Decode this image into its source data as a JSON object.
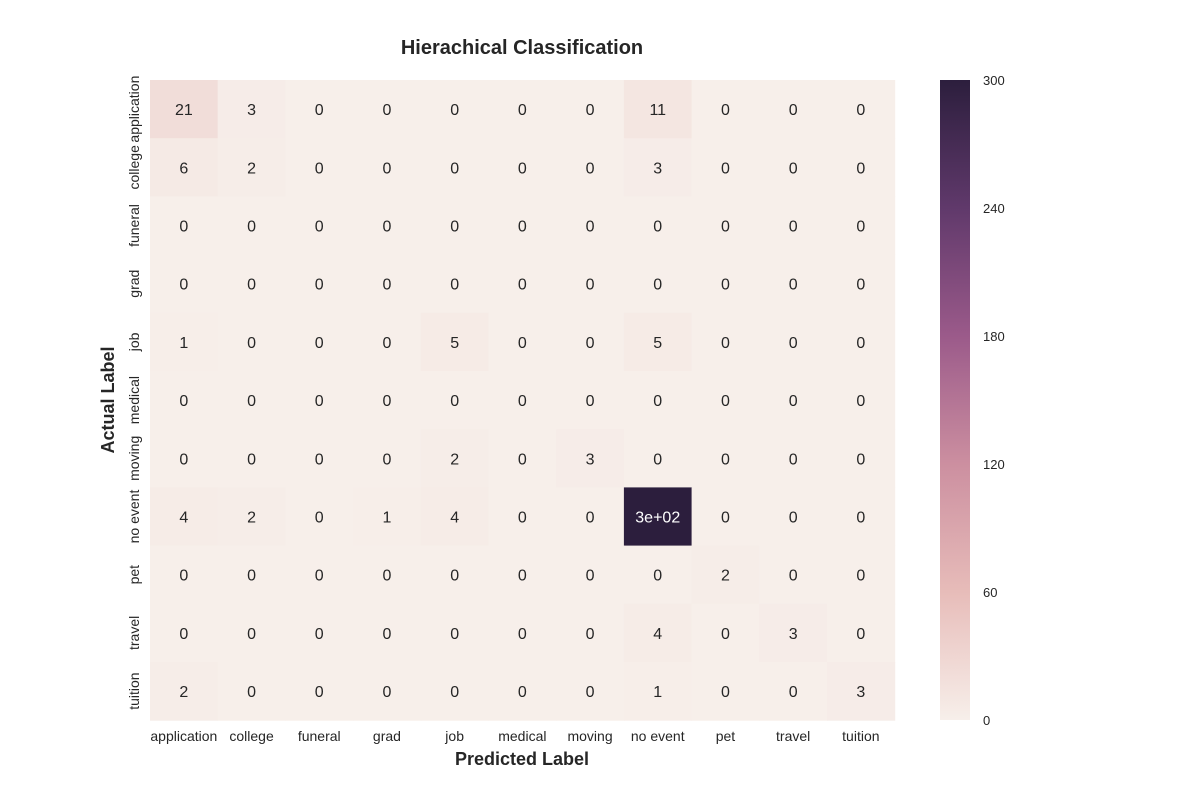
{
  "chart_data": {
    "type": "heatmap",
    "title": "Hierachical Classification",
    "xlabel": "Predicted Label",
    "ylabel": "Actual Label",
    "x_categories": [
      "application",
      "college",
      "funeral",
      "grad",
      "job",
      "medical",
      "moving",
      "no event",
      "pet",
      "travel",
      "tuition"
    ],
    "y_categories": [
      "application",
      "college",
      "funeral",
      "grad",
      "job",
      "medical",
      "moving",
      "no event",
      "pet",
      "travel",
      "tuition"
    ],
    "values": [
      [
        21,
        3,
        0,
        0,
        0,
        0,
        0,
        11,
        0,
        0,
        0
      ],
      [
        6,
        2,
        0,
        0,
        0,
        0,
        0,
        3,
        0,
        0,
        0
      ],
      [
        0,
        0,
        0,
        0,
        0,
        0,
        0,
        0,
        0,
        0,
        0
      ],
      [
        0,
        0,
        0,
        0,
        0,
        0,
        0,
        0,
        0,
        0,
        0
      ],
      [
        1,
        0,
        0,
        0,
        5,
        0,
        0,
        5,
        0,
        0,
        0
      ],
      [
        0,
        0,
        0,
        0,
        0,
        0,
        0,
        0,
        0,
        0,
        0
      ],
      [
        0,
        0,
        0,
        0,
        2,
        0,
        3,
        0,
        0,
        0,
        0
      ],
      [
        4,
        2,
        0,
        1,
        4,
        0,
        0,
        300,
        0,
        0,
        0
      ],
      [
        0,
        0,
        0,
        0,
        0,
        0,
        0,
        0,
        2,
        0,
        0
      ],
      [
        0,
        0,
        0,
        0,
        0,
        0,
        0,
        4,
        0,
        3,
        0
      ],
      [
        2,
        0,
        0,
        0,
        0,
        0,
        0,
        1,
        0,
        0,
        3
      ]
    ],
    "cell_labels": [
      [
        "21",
        "3",
        "0",
        "0",
        "0",
        "0",
        "0",
        "11",
        "0",
        "0",
        "0"
      ],
      [
        "6",
        "2",
        "0",
        "0",
        "0",
        "0",
        "0",
        "3",
        "0",
        "0",
        "0"
      ],
      [
        "0",
        "0",
        "0",
        "0",
        "0",
        "0",
        "0",
        "0",
        "0",
        "0",
        "0"
      ],
      [
        "0",
        "0",
        "0",
        "0",
        "0",
        "0",
        "0",
        "0",
        "0",
        "0",
        "0"
      ],
      [
        "1",
        "0",
        "0",
        "0",
        "5",
        "0",
        "0",
        "5",
        "0",
        "0",
        "0"
      ],
      [
        "0",
        "0",
        "0",
        "0",
        "0",
        "0",
        "0",
        "0",
        "0",
        "0",
        "0"
      ],
      [
        "0",
        "0",
        "0",
        "0",
        "2",
        "0",
        "3",
        "0",
        "0",
        "0",
        "0"
      ],
      [
        "4",
        "2",
        "0",
        "1",
        "4",
        "0",
        "0",
        "3e+02",
        "0",
        "0",
        "0"
      ],
      [
        "0",
        "0",
        "0",
        "0",
        "0",
        "0",
        "0",
        "0",
        "2",
        "0",
        "0"
      ],
      [
        "0",
        "0",
        "0",
        "0",
        "0",
        "0",
        "0",
        "4",
        "0",
        "3",
        "0"
      ],
      [
        "2",
        "0",
        "0",
        "0",
        "0",
        "0",
        "0",
        "1",
        "0",
        "0",
        "3"
      ]
    ],
    "colorbar": {
      "range": [
        0,
        300
      ],
      "ticks": [
        0,
        60,
        120,
        180,
        240,
        300
      ],
      "colors": [
        "#f7efea",
        "#e7bcb9",
        "#cc8fa0",
        "#9b5a8a",
        "#60396b",
        "#2c1e3d"
      ]
    },
    "grid": false
  }
}
